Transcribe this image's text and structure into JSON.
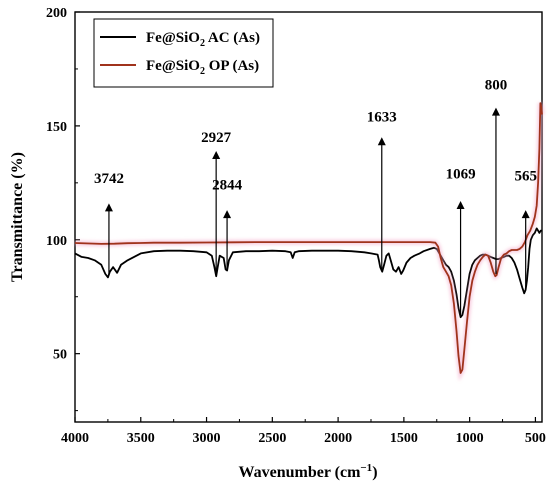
{
  "chart_data": {
    "type": "line",
    "xlabel": "Wavenumber (cm",
    "xlabel_sup": "−1",
    "xlabel_close": ")",
    "ylabel": "Transmittance (%)",
    "xlim": [
      4000,
      450
    ],
    "ylim": [
      20,
      200
    ],
    "x_ticks": [
      4000,
      3500,
      3000,
      2500,
      2000,
      1500,
      1000,
      500
    ],
    "y_ticks": [
      50,
      100,
      150,
      200
    ],
    "grid": false,
    "legend_position": "top-left",
    "series": [
      {
        "name_main": "Fe@SiO",
        "name_sub": "2",
        "name_rest": " AC (As)",
        "color": "#000000",
        "points": [
          [
            4000,
            94
          ],
          [
            3950,
            92.5
          ],
          [
            3900,
            92
          ],
          [
            3850,
            91
          ],
          [
            3800,
            89
          ],
          [
            3770,
            85
          ],
          [
            3750,
            83.5
          ],
          [
            3735,
            86
          ],
          [
            3710,
            88
          ],
          [
            3680,
            85.5
          ],
          [
            3650,
            89
          ],
          [
            3600,
            91
          ],
          [
            3500,
            94
          ],
          [
            3400,
            95
          ],
          [
            3300,
            95.2
          ],
          [
            3200,
            95.2
          ],
          [
            3100,
            95
          ],
          [
            3000,
            94.5
          ],
          [
            2960,
            93
          ],
          [
            2940,
            88
          ],
          [
            2927,
            84
          ],
          [
            2915,
            88
          ],
          [
            2900,
            93
          ],
          [
            2870,
            92
          ],
          [
            2855,
            87
          ],
          [
            2844,
            86.5
          ],
          [
            2830,
            91
          ],
          [
            2800,
            94.5
          ],
          [
            2700,
            95
          ],
          [
            2600,
            95
          ],
          [
            2500,
            95.2
          ],
          [
            2400,
            95
          ],
          [
            2360,
            94.5
          ],
          [
            2345,
            92
          ],
          [
            2330,
            94.5
          ],
          [
            2300,
            95
          ],
          [
            2200,
            95.2
          ],
          [
            2100,
            95.2
          ],
          [
            2000,
            95.2
          ],
          [
            1900,
            95
          ],
          [
            1800,
            94.5
          ],
          [
            1750,
            94
          ],
          [
            1700,
            93.5
          ],
          [
            1690,
            91
          ],
          [
            1680,
            88
          ],
          [
            1665,
            86
          ],
          [
            1650,
            89
          ],
          [
            1633,
            93
          ],
          [
            1615,
            94
          ],
          [
            1600,
            91
          ],
          [
            1580,
            87
          ],
          [
            1560,
            86
          ],
          [
            1540,
            88
          ],
          [
            1520,
            85
          ],
          [
            1505,
            86.5
          ],
          [
            1480,
            90
          ],
          [
            1450,
            92
          ],
          [
            1420,
            93
          ],
          [
            1400,
            93.5
          ],
          [
            1380,
            94
          ],
          [
            1350,
            95
          ],
          [
            1300,
            96
          ],
          [
            1270,
            96.5
          ],
          [
            1250,
            96
          ],
          [
            1230,
            94
          ],
          [
            1200,
            91
          ],
          [
            1180,
            89
          ],
          [
            1160,
            88
          ],
          [
            1140,
            86
          ],
          [
            1120,
            82
          ],
          [
            1100,
            76
          ],
          [
            1085,
            70
          ],
          [
            1069,
            66
          ],
          [
            1055,
            67
          ],
          [
            1040,
            71
          ],
          [
            1020,
            78
          ],
          [
            1000,
            85
          ],
          [
            980,
            89
          ],
          [
            960,
            91
          ],
          [
            940,
            92
          ],
          [
            920,
            93
          ],
          [
            900,
            93.5
          ],
          [
            880,
            93.5
          ],
          [
            860,
            93
          ],
          [
            840,
            92.5
          ],
          [
            820,
            92
          ],
          [
            800,
            91.5
          ],
          [
            780,
            91.5
          ],
          [
            760,
            92
          ],
          [
            740,
            92.5
          ],
          [
            720,
            93
          ],
          [
            700,
            93
          ],
          [
            680,
            92
          ],
          [
            660,
            90
          ],
          [
            640,
            87
          ],
          [
            620,
            83
          ],
          [
            600,
            79
          ],
          [
            585,
            76.5
          ],
          [
            575,
            78
          ],
          [
            565,
            82
          ],
          [
            555,
            88
          ],
          [
            545,
            96
          ],
          [
            535,
            100
          ],
          [
            520,
            102
          ],
          [
            505,
            103
          ],
          [
            490,
            105
          ],
          [
            480,
            104
          ],
          [
            470,
            103
          ],
          [
            460,
            104
          ],
          [
            450,
            104
          ]
        ]
      },
      {
        "name_main": "Fe@SiO",
        "name_sub": "2",
        "name_rest": " OP (As)",
        "color": "#a0331c",
        "points": [
          [
            4000,
            98.6
          ],
          [
            3800,
            98.2
          ],
          [
            3700,
            98.3
          ],
          [
            3600,
            98.5
          ],
          [
            3500,
            98.6
          ],
          [
            3400,
            98.7
          ],
          [
            3200,
            98.7
          ],
          [
            3000,
            98.8
          ],
          [
            2800,
            98.9
          ],
          [
            2600,
            99
          ],
          [
            2400,
            99
          ],
          [
            2200,
            99
          ],
          [
            2000,
            99
          ],
          [
            1800,
            99
          ],
          [
            1600,
            99
          ],
          [
            1400,
            99
          ],
          [
            1300,
            99
          ],
          [
            1260,
            98.7
          ],
          [
            1240,
            97
          ],
          [
            1220,
            92
          ],
          [
            1200,
            88
          ],
          [
            1180,
            86
          ],
          [
            1160,
            84
          ],
          [
            1140,
            80
          ],
          [
            1120,
            72
          ],
          [
            1100,
            60
          ],
          [
            1085,
            49
          ],
          [
            1069,
            41.5
          ],
          [
            1055,
            43
          ],
          [
            1040,
            52
          ],
          [
            1020,
            64
          ],
          [
            1000,
            75
          ],
          [
            980,
            82
          ],
          [
            960,
            86
          ],
          [
            940,
            89
          ],
          [
            920,
            91
          ],
          [
            900,
            92.5
          ],
          [
            880,
            93.5
          ],
          [
            860,
            93
          ],
          [
            840,
            90
          ],
          [
            820,
            86
          ],
          [
            805,
            84
          ],
          [
            795,
            84.5
          ],
          [
            780,
            88
          ],
          [
            760,
            92
          ],
          [
            740,
            93.5
          ],
          [
            720,
            94
          ],
          [
            700,
            95
          ],
          [
            680,
            95.5
          ],
          [
            660,
            95.5
          ],
          [
            640,
            95.5
          ],
          [
            620,
            96
          ],
          [
            600,
            97
          ],
          [
            580,
            99
          ],
          [
            560,
            102
          ],
          [
            540,
            104
          ],
          [
            520,
            107
          ],
          [
            505,
            110
          ],
          [
            490,
            115
          ],
          [
            480,
            125
          ],
          [
            470,
            140
          ],
          [
            462,
            160
          ],
          [
            455,
            158
          ],
          [
            450,
            155
          ]
        ]
      }
    ],
    "annotations": [
      {
        "label": "3742",
        "x": 3742,
        "y_from": 85,
        "y_to": 116,
        "text_y": 125
      },
      {
        "label": "2927",
        "x": 2927,
        "y_from": 85,
        "y_to": 139,
        "text_y": 143
      },
      {
        "label": "2844",
        "x": 2844,
        "y_from": 87,
        "y_to": 113,
        "text_y": 122
      },
      {
        "label": "1633",
        "x": 1668,
        "y_from": 87,
        "y_to": 145,
        "text_y": 152
      },
      {
        "label": "1069",
        "x": 1069,
        "y_from": 67,
        "y_to": 117,
        "text_y": 127
      },
      {
        "label": "800",
        "x": 800,
        "y_from": 85,
        "y_to": 158,
        "text_y": 166
      },
      {
        "label": "565",
        "x": 574,
        "y_from": 79,
        "y_to": 113,
        "text_y": 126
      }
    ]
  }
}
